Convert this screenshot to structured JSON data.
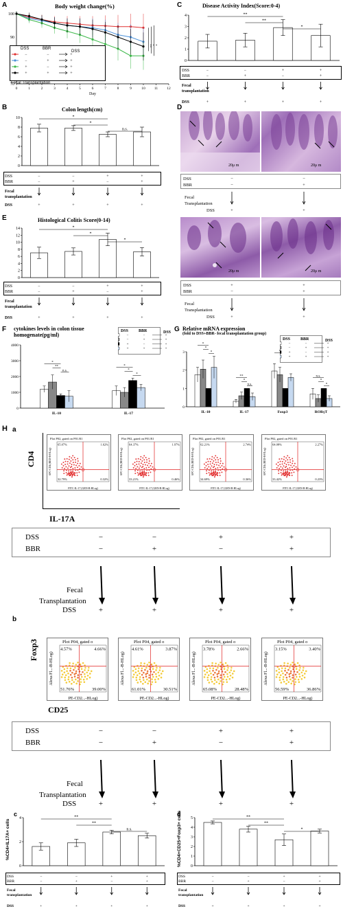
{
  "panel_letters": {
    "A": "A",
    "B": "B",
    "C": "C",
    "D": "D",
    "E": "E",
    "F": "F",
    "G": "G",
    "H": "H",
    "Ha": "a",
    "Hb": "b",
    "Hc": "c",
    "Hd": "d"
  },
  "titles": {
    "A": "Body weight change(%)",
    "B": "Colon length(cm)",
    "C": "Disease Activity Index(Score:0-4)",
    "E": "Histological Colitis Score(0-14)",
    "F1": "cytokines levels in colon tissue",
    "F2": "homogenate(pg/ml)",
    "G1": "Relative mRNA expression",
    "G2": "(fold to DSS+BBR- fecal transplantation group)"
  },
  "labels": {
    "DSS": "DSS",
    "BBR": "BBR",
    "Fecal": "Fecal",
    "transplantation": "transplantation",
    "Transplantation": "Transplantation",
    "fecal_transplantation_A": "Fecal  Transplantation",
    "day": "Day",
    "plus": "+",
    "minus": "−",
    "arrow": "↓",
    "CD4": "CD4",
    "IL17A": "IL-17A",
    "Foxp3": "Foxp3",
    "CD25": "CD25",
    "ylab_c": "%CD4+IL17A+ cells",
    "ylab_d": "%CD4+CD25+Foxp3+ cells",
    "scale": "20μ m"
  },
  "groups": {
    "dss": [
      "−",
      "−",
      "+",
      "+"
    ],
    "bbr": [
      "−",
      "+",
      "−",
      "+"
    ],
    "dss_after": [
      "+",
      "+",
      "+",
      "+"
    ]
  },
  "facs_a": [
    {
      "title": "Plot P02, gated on P01.R1",
      "ul": "65.07%",
      "ur": "1.62%",
      "ll": "32.79%",
      "lr": "0.32%"
    },
    {
      "title": "Plot P02, gated on P01.R1",
      "ul": "64.37%",
      "ur": "1.97%",
      "ll": "33.21%",
      "lr": "0.46%"
    },
    {
      "title": "Plot P02, gated on P01.R1",
      "ul": "62.21%",
      "ur": "2.74%",
      "ll": "34.69%",
      "lr": "0.36%"
    },
    {
      "title": "Plot P02, gated on P01.R1",
      "ul": "64.08%",
      "ur": "2.27%",
      "ll": "33.42%",
      "lr": "0.23%"
    }
  ],
  "facs_a_axes": {
    "y": "APC-CD4 (RED-R-HLog)",
    "x": "FITC-IL-17 (GRN-B-HLog)"
  },
  "facs_b": [
    {
      "title": "Plot P04, gated o",
      "ul": "4.57%",
      "ur": "4.66%",
      "ll": "51.76%",
      "lr": "39.00%"
    },
    {
      "title": "Plot P04, gated o",
      "ul": "4.61%",
      "ur": "3.87%",
      "ll": "61.01%",
      "lr": "30.51%"
    },
    {
      "title": "Plot P04, gated o",
      "ul": "3.78%",
      "ur": "2.66%",
      "ll": "65.08%",
      "lr": "28.48%"
    },
    {
      "title": "Plot P04, gated o",
      "ul": "3.15%",
      "ur": "3.40%",
      "ll": "56.59%",
      "lr": "36.86%"
    }
  ],
  "facs_b_axes": {
    "y": "Alexa Fl...-B-HLog)",
    "x": "PE-CD2...-HLog)"
  },
  "chart_data": [
    {
      "id": "A",
      "type": "line",
      "title": "Body weight change(%)",
      "xlabel": "Day",
      "ylabel": "",
      "x": [
        0,
        1,
        2,
        3,
        4,
        5,
        6,
        7,
        8,
        9,
        10
      ],
      "xlim": [
        0,
        12
      ],
      "ylim": [
        70,
        100
      ],
      "yticks": [
        70,
        80,
        90,
        100
      ],
      "series": [
        {
          "color": "#e03030",
          "values": [
            100,
            98.5,
            97.5,
            96.5,
            96,
            95.5,
            95,
            94.8,
            94.5,
            94.5,
            94
          ]
        },
        {
          "color": "#4a90d9",
          "values": [
            100,
            98,
            97,
            96,
            95,
            94.5,
            94,
            93,
            91,
            90,
            88
          ]
        },
        {
          "color": "#3db84a",
          "values": [
            100,
            97.5,
            96,
            94,
            92.5,
            91,
            89,
            87,
            85,
            82,
            82
          ]
        },
        {
          "color": "#000000",
          "values": [
            100,
            99,
            97.5,
            96,
            95,
            94.5,
            93.5,
            92,
            90,
            88,
            86
          ]
        }
      ],
      "signif": [
        "**",
        "*",
        "*"
      ]
    },
    {
      "id": "B",
      "type": "bar",
      "title": "Colon length(cm)",
      "ylim": [
        0,
        10
      ],
      "yticks": [
        0,
        2,
        4,
        6,
        8,
        10
      ],
      "values": [
        7.8,
        7.8,
        6.5,
        7.0
      ],
      "errors": [
        0.8,
        0.5,
        0.5,
        1.0
      ],
      "colors": [
        "#fff",
        "#fff",
        "#fff",
        "#fff"
      ],
      "brackets": [
        {
          "from": 0,
          "to": 2,
          "label": "*"
        },
        {
          "from": 1,
          "to": 2,
          "label": "*"
        },
        {
          "from": 2,
          "to": 3,
          "label": "n.s."
        }
      ]
    },
    {
      "id": "C",
      "type": "bar",
      "title": "Disease Activity Index(Score:0-4)",
      "ylim": [
        0,
        4
      ],
      "yticks": [
        0,
        1,
        2,
        3,
        4
      ],
      "values": [
        1.7,
        1.8,
        2.9,
        2.2
      ],
      "errors": [
        0.6,
        0.6,
        0.7,
        1.0
      ],
      "colors": [
        "#fff",
        "#fff",
        "#fff",
        "#fff"
      ],
      "brackets": [
        {
          "from": 0,
          "to": 2,
          "label": "**"
        },
        {
          "from": 1,
          "to": 2,
          "label": "**"
        },
        {
          "from": 2,
          "to": 3,
          "label": "*"
        }
      ]
    },
    {
      "id": "E",
      "type": "bar",
      "title": "Histological Colitis Score(0-14)",
      "ylim": [
        0,
        14
      ],
      "yticks": [
        0,
        2,
        4,
        6,
        8,
        10,
        12,
        14
      ],
      "values": [
        7.0,
        7.4,
        10.8,
        7.3
      ],
      "errors": [
        1.6,
        1.0,
        1.8,
        1.2
      ],
      "colors": [
        "#fff",
        "#fff",
        "#fff",
        "#fff"
      ],
      "brackets": [
        {
          "from": 0,
          "to": 2,
          "label": "*"
        },
        {
          "from": 1,
          "to": 2,
          "label": "*"
        },
        {
          "from": 2,
          "to": 3,
          "label": "*"
        }
      ]
    },
    {
      "id": "F",
      "type": "bar",
      "ylim": [
        0,
        4000
      ],
      "yticks": [
        0,
        1000,
        2000,
        3000,
        4000
      ],
      "categories": [
        "IL-10",
        "IL-17"
      ],
      "series": [
        {
          "color": "#ffffff",
          "values": [
            1200,
            1100
          ],
          "errors": [
            200,
            300
          ]
        },
        {
          "color": "#888888",
          "values": [
            1650,
            1000
          ],
          "errors": [
            450,
            300
          ]
        },
        {
          "color": "#000000",
          "values": [
            800,
            1750
          ],
          "errors": [
            100,
            150
          ]
        },
        {
          "color": "#c6d9f0",
          "values": [
            750,
            1300
          ],
          "errors": [
            350,
            200
          ]
        }
      ],
      "brackets": [
        {
          "c": 0,
          "from": 0,
          "to": 2,
          "label": "*"
        },
        {
          "c": 0,
          "from": 1,
          "to": 2,
          "label": "**"
        },
        {
          "c": 0,
          "from": 2,
          "to": 3,
          "label": "n.s."
        },
        {
          "c": 1,
          "from": 0,
          "to": 2,
          "label": "*"
        },
        {
          "c": 1,
          "from": 1,
          "to": 2,
          "label": "*"
        },
        {
          "c": 1,
          "from": 2,
          "to": 3,
          "label": "*"
        }
      ]
    },
    {
      "id": "G",
      "type": "bar",
      "ylim": [
        0,
        3
      ],
      "yticks": [
        0,
        1,
        2,
        3
      ],
      "categories": [
        "IL-10",
        "IL-17",
        "Foxp3",
        "RORγT"
      ],
      "series": [
        {
          "color": "#ffffff",
          "values": [
            1.75,
            0.3,
            1.95,
            0.7
          ],
          "errors": [
            0.4,
            0.1,
            0.4,
            0.3
          ]
        },
        {
          "color": "#888888",
          "values": [
            2.05,
            0.6,
            1.75,
            0.45
          ],
          "errors": [
            0.5,
            0.2,
            0.4,
            0.2
          ]
        },
        {
          "color": "#000000",
          "values": [
            1.0,
            1.0,
            1.0,
            1.0
          ],
          "errors": [
            0,
            0,
            0,
            0
          ]
        },
        {
          "color": "#c6d9f0",
          "values": [
            2.15,
            0.55,
            1.6,
            0.45
          ],
          "errors": [
            0.6,
            0.2,
            0.2,
            0.15
          ]
        }
      ],
      "brackets": [
        {
          "c": 0,
          "from": 0,
          "to": 2,
          "label": "*"
        },
        {
          "c": 0,
          "from": 1,
          "to": 2,
          "label": "*"
        },
        {
          "c": 0,
          "from": 2,
          "to": 3,
          "label": "*"
        },
        {
          "c": 1,
          "from": 0,
          "to": 2,
          "label": "**"
        },
        {
          "c": 1,
          "from": 1,
          "to": 2,
          "label": "*"
        },
        {
          "c": 1,
          "from": 2,
          "to": 3,
          "label": "n.s."
        },
        {
          "c": 2,
          "from": 0,
          "to": 2,
          "label": "*"
        },
        {
          "c": 2,
          "from": 1,
          "to": 2,
          "label": "*"
        },
        {
          "c": 2,
          "from": 2,
          "to": 3,
          "label": "*"
        },
        {
          "c": 3,
          "from": 0,
          "to": 2,
          "label": "n.s."
        },
        {
          "c": 3,
          "from": 1,
          "to": 2,
          "label": "*"
        },
        {
          "c": 3,
          "from": 2,
          "to": 3,
          "label": "*"
        }
      ]
    },
    {
      "id": "Hc",
      "type": "bar",
      "ylim": [
        0,
        4
      ],
      "yticks": [
        0,
        2,
        4
      ],
      "values": [
        1.6,
        1.9,
        2.8,
        2.5
      ],
      "errors": [
        0.3,
        0.3,
        0.15,
        0.2
      ],
      "colors": [
        "#fff",
        "#fff",
        "#fff",
        "#fff"
      ],
      "brackets": [
        {
          "from": 0,
          "to": 2,
          "label": "**"
        },
        {
          "from": 1,
          "to": 2,
          "label": "**"
        },
        {
          "from": 2,
          "to": 3,
          "label": "n.s."
        }
      ]
    },
    {
      "id": "Hd",
      "type": "bar",
      "ylim": [
        0,
        5
      ],
      "yticks": [
        0,
        1,
        2,
        3,
        4,
        5
      ],
      "values": [
        4.5,
        3.8,
        2.7,
        3.6
      ],
      "errors": [
        0.15,
        0.3,
        0.6,
        0.2
      ],
      "colors": [
        "#fff",
        "#fff",
        "#fff",
        "#fff"
      ],
      "brackets": [
        {
          "from": 0,
          "to": 2,
          "label": "**"
        },
        {
          "from": 1,
          "to": 2,
          "label": "**"
        },
        {
          "from": 2,
          "to": 3,
          "label": "*"
        }
      ]
    }
  ]
}
